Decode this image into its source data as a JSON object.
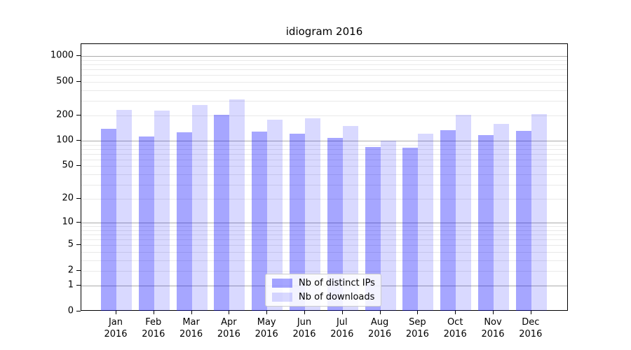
{
  "chart_data": {
    "type": "bar",
    "title": "idiogram 2016",
    "categories": [
      "Jan 2016",
      "Feb 2016",
      "Mar 2016",
      "Apr 2016",
      "May 2016",
      "Jun 2016",
      "Jul 2016",
      "Aug 2016",
      "Sep 2016",
      "Oct 2016",
      "Nov 2016",
      "Dec 2016"
    ],
    "x_tick_months": [
      "Jan",
      "Feb",
      "Mar",
      "Apr",
      "May",
      "Jun",
      "Jul",
      "Aug",
      "Sep",
      "Oct",
      "Nov",
      "Dec"
    ],
    "x_tick_year": "2016",
    "series": [
      {
        "name": "Nb of distinct IPs",
        "color": "rgba(0,0,255,0.35)",
        "values": [
          139,
          112,
          126,
          202,
          130,
          122,
          109,
          85,
          83,
          135,
          118,
          131
        ]
      },
      {
        "name": "Nb of downloads",
        "color": "rgba(0,0,255,0.15)",
        "values": [
          234,
          227,
          264,
          311,
          178,
          184,
          150,
          100,
          122,
          202,
          159,
          207
        ]
      }
    ],
    "xlabel": "",
    "ylabel": "",
    "y_axis": {
      "scale": "log1p",
      "tick_values": [
        0,
        1,
        2,
        5,
        10,
        20,
        50,
        100,
        200,
        500,
        1000
      ],
      "major_gridlines": [
        1,
        10,
        100,
        1000
      ],
      "minor_gridlines": [
        2,
        3,
        4,
        5,
        6,
        7,
        8,
        9,
        20,
        30,
        40,
        50,
        60,
        70,
        80,
        90,
        200,
        300,
        400,
        500,
        600,
        700,
        800,
        900
      ],
      "ylim": [
        0,
        1385
      ]
    },
    "grid": "on",
    "legend_position": "lower-center",
    "colors": {
      "background": "#ffffff",
      "axis": "#000000",
      "major_grid": "#ababab",
      "minor_grid": "#e9e9e9"
    }
  }
}
